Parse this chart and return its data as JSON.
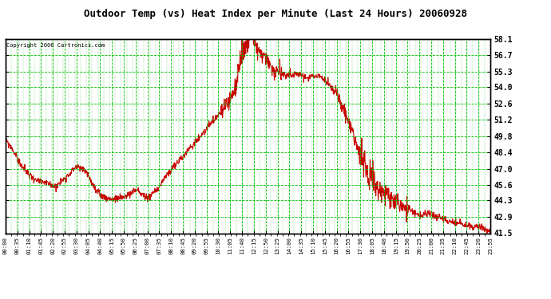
{
  "title": "Outdoor Temp (vs) Heat Index per Minute (Last 24 Hours) 20060928",
  "copyright_text": "Copyright 2006 Cartronics.com",
  "line_color": "#cc0000",
  "background_color": "#ffffff",
  "plot_bg_color": "#ffffff",
  "grid_color": "#00bb00",
  "ytick_labels": [
    58.1,
    56.7,
    55.3,
    54.0,
    52.6,
    51.2,
    49.8,
    48.4,
    47.0,
    45.6,
    44.3,
    42.9,
    41.5
  ],
  "ymin": 41.5,
  "ymax": 58.1,
  "xtick_labels": [
    "00:00",
    "00:35",
    "01:10",
    "01:45",
    "02:20",
    "02:55",
    "03:30",
    "04:05",
    "04:40",
    "05:15",
    "05:50",
    "06:25",
    "07:00",
    "07:35",
    "08:10",
    "08:45",
    "09:20",
    "09:55",
    "10:30",
    "11:05",
    "11:40",
    "12:15",
    "12:50",
    "13:25",
    "14:00",
    "14:35",
    "15:10",
    "15:45",
    "16:20",
    "16:55",
    "17:30",
    "18:05",
    "18:40",
    "19:15",
    "19:50",
    "20:25",
    "21:00",
    "21:35",
    "22:10",
    "22:45",
    "23:20",
    "23:55"
  ],
  "curve_hours": [
    0,
    0.3,
    0.8,
    1.2,
    1.5,
    2.0,
    2.5,
    3.0,
    3.5,
    4.0,
    4.5,
    5.0,
    5.5,
    6.0,
    6.5,
    7.0,
    7.5,
    8.0,
    8.5,
    9.0,
    9.5,
    10.0,
    10.5,
    11.0,
    11.3,
    11.5,
    11.7,
    12.0,
    12.2,
    12.5,
    12.8,
    13.0,
    13.2,
    13.5,
    14.0,
    14.5,
    15.0,
    15.5,
    16.0,
    16.5,
    17.0,
    17.3,
    17.6,
    18.0,
    18.5,
    19.0,
    19.5,
    20.0,
    20.5,
    21.0,
    21.5,
    22.0,
    22.5,
    23.0,
    23.5,
    24.0
  ],
  "curve_vals": [
    49.5,
    48.8,
    47.2,
    46.5,
    46.0,
    45.8,
    45.5,
    46.3,
    47.2,
    46.8,
    45.0,
    44.5,
    44.4,
    44.7,
    45.2,
    44.5,
    45.2,
    46.5,
    47.5,
    48.5,
    49.5,
    50.5,
    51.5,
    52.5,
    53.5,
    55.0,
    56.5,
    57.8,
    58.1,
    57.2,
    56.5,
    56.0,
    55.5,
    55.2,
    55.0,
    55.1,
    54.8,
    55.0,
    54.2,
    53.0,
    51.0,
    49.5,
    48.0,
    46.5,
    45.2,
    44.5,
    44.0,
    43.5,
    43.0,
    43.2,
    42.8,
    42.5,
    42.3,
    42.1,
    42.0,
    41.7
  ]
}
